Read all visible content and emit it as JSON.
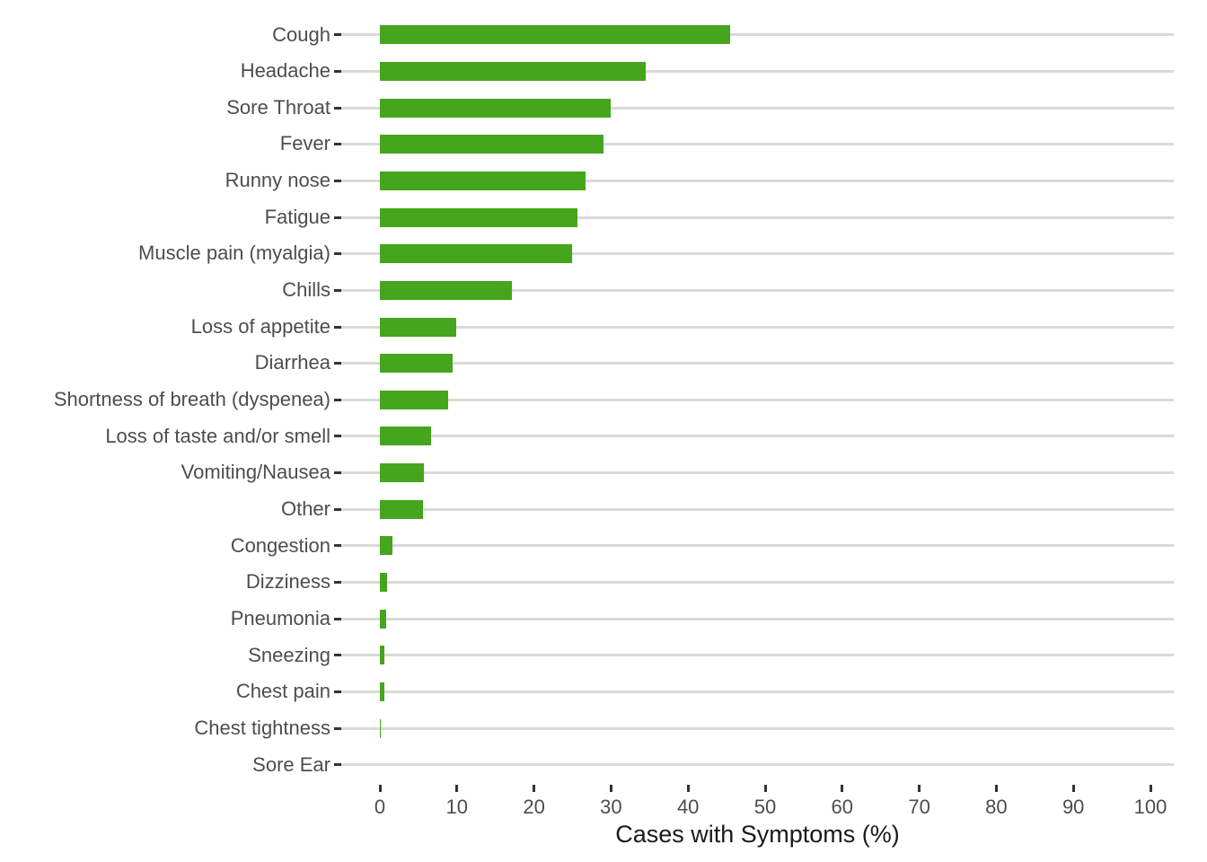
{
  "chart_data": {
    "type": "bar",
    "orientation": "horizontal",
    "title": "",
    "xlabel": "Cases with Symptoms (%)",
    "ylabel": "",
    "xlim": [
      0,
      100
    ],
    "x_ticks": [
      0,
      10,
      20,
      30,
      40,
      50,
      60,
      70,
      80,
      90,
      100
    ],
    "grid": "horizontal-major-only",
    "legend_position": "none",
    "categories": [
      "Cough",
      "Headache",
      "Sore Throat",
      "Fever",
      "Runny nose",
      "Fatigue",
      "Muscle pain (myalgia)",
      "Chills",
      "Loss of appetite",
      "Diarrhea",
      "Shortness of breath (dyspenea)",
      "Loss of taste and/or smell",
      "Vomiting/Nausea",
      "Other",
      "Congestion",
      "Dizziness",
      "Pneumonia",
      "Sneezing",
      "Chest pain",
      "Chest tightness",
      "Sore Ear"
    ],
    "values": [
      45.5,
      34.5,
      30.0,
      29.0,
      26.7,
      25.6,
      24.9,
      17.1,
      9.9,
      9.4,
      8.8,
      6.7,
      5.7,
      5.6,
      1.6,
      0.9,
      0.8,
      0.55,
      0.55,
      0.15,
      0
    ]
  },
  "colors": {
    "bar": "#45a51d",
    "gridline": "#d9d9d9",
    "tick_mark": "#333333",
    "axis_text": "#4d4d4d",
    "axis_title": "#1a1a1a",
    "background": "#ffffff"
  }
}
